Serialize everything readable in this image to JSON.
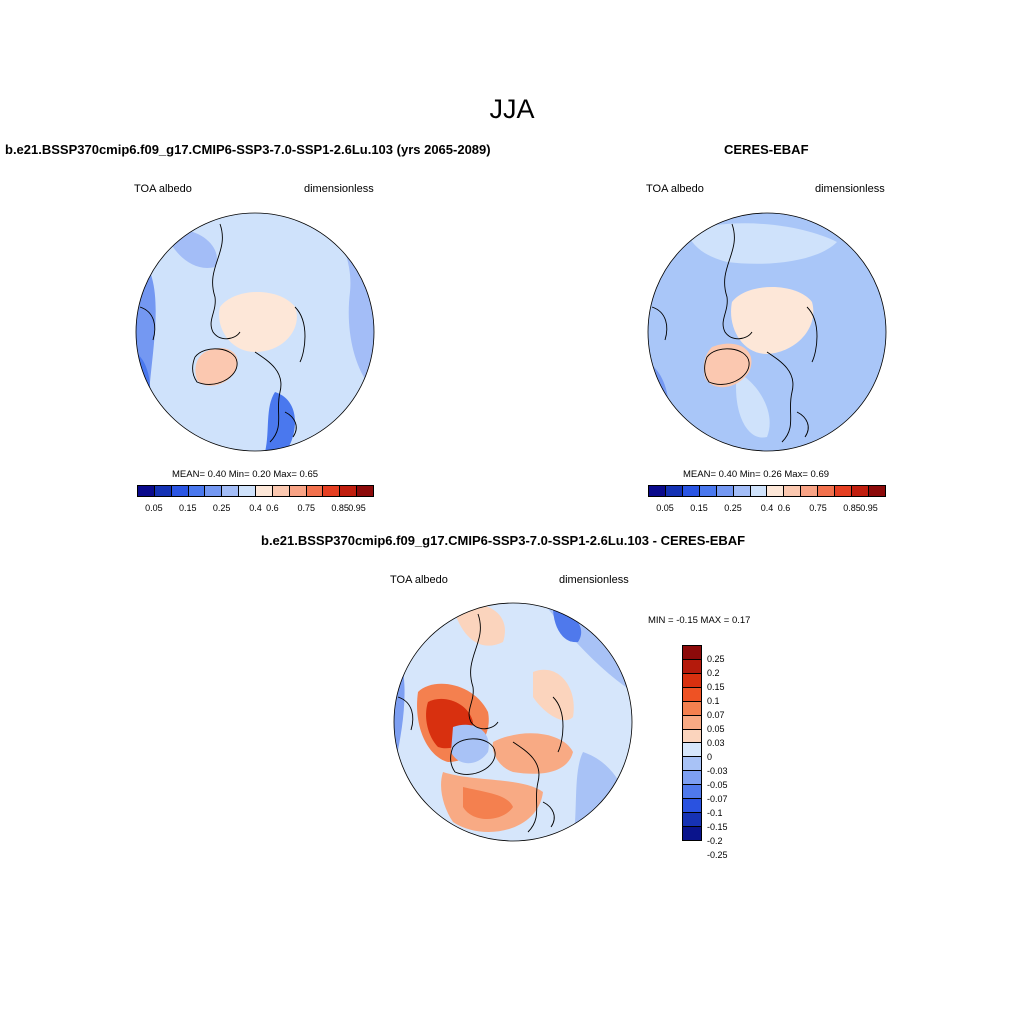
{
  "page": {
    "season": "JJA"
  },
  "panels": [
    {
      "title": "b.e21.BSSP370cmip6.f09_g17.CMIP6-SSP3-7.0-SSP1-2.6Lu.103 (yrs 2065-2089)",
      "left_label": "TOA albedo",
      "right_label": "dimensionless",
      "stats": "MEAN=   0.40  Min=   0.20  Max=   0.65",
      "bg": "#cfe2fb",
      "palette": [
        "#0a0a8c",
        "#1432b4",
        "#2a55e3",
        "#4a78ee",
        "#7498f2",
        "#a3bdf7",
        "#cfe2fb",
        "#fde7d8",
        "#fbc8b0",
        "#f8a385",
        "#f2714d",
        "#e53f22",
        "#c01e0e",
        "#8c0a0a"
      ],
      "ticks": [
        "0.05",
        "0.15",
        "0.25",
        "0.4",
        "0.6",
        "0.75",
        "0.85",
        "0.95"
      ]
    },
    {
      "title": "CERES-EBAF",
      "left_label": "TOA albedo",
      "right_label": "dimensionless",
      "stats": "MEAN=   0.40  Min=   0.26  Max=   0.69",
      "bg": "#a9c6f8",
      "palette": [
        "#0a0a8c",
        "#1432b4",
        "#2a55e3",
        "#4a78ee",
        "#7498f2",
        "#a3bdf7",
        "#cfe2fb",
        "#fde7d8",
        "#fbc8b0",
        "#f8a385",
        "#f2714d",
        "#e53f22",
        "#c01e0e",
        "#8c0a0a"
      ],
      "ticks": [
        "0.05",
        "0.15",
        "0.25",
        "0.4",
        "0.6",
        "0.75",
        "0.85",
        "0.95"
      ]
    }
  ],
  "diff": {
    "title": "b.e21.BSSP370cmip6.f09_g17.CMIP6-SSP3-7.0-SSP1-2.6Lu.103 - CERES-EBAF",
    "left_label": "TOA albedo",
    "right_label": "dimensionless",
    "minmax": "MIN =  -0.15 MAX =   0.17",
    "palette": [
      "#8c0a0a",
      "#b41a0c",
      "#d8300f",
      "#ee5224",
      "#f4804f",
      "#f8aa84",
      "#fbd4bd",
      "#d6e6fb",
      "#a8c2f6",
      "#7d9ff2",
      "#4f79ec",
      "#2a52e0",
      "#1632b4",
      "#0a148c"
    ],
    "ticks": [
      "0.25",
      "0.2",
      "0.15",
      "0.1",
      "0.07",
      "0.05",
      "0.03",
      "0",
      "-0.03",
      "-0.05",
      "-0.07",
      "-0.1",
      "-0.15",
      "-0.2",
      "-0.25"
    ]
  }
}
